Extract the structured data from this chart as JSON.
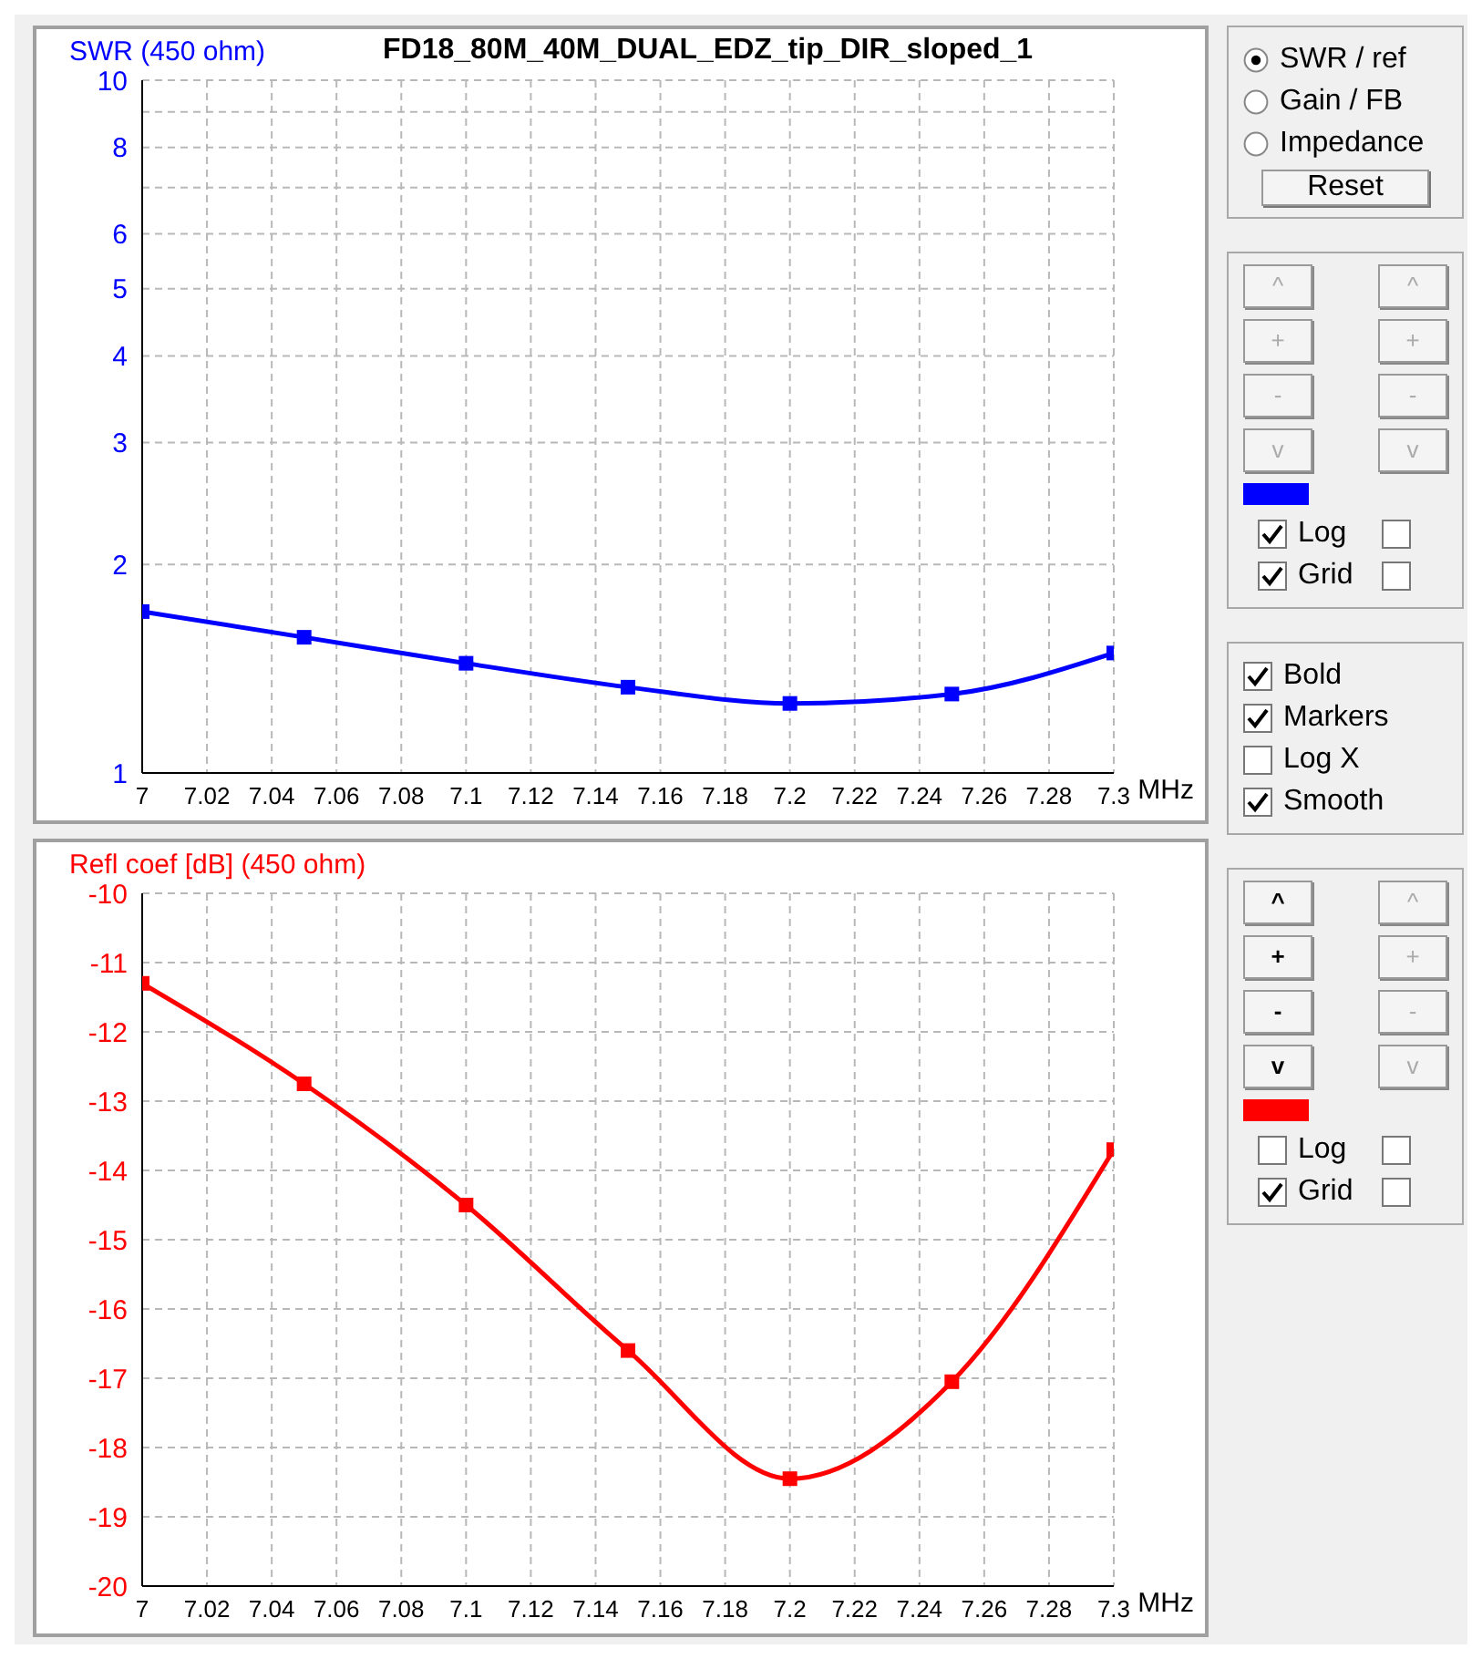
{
  "chart_data": [
    {
      "type": "line",
      "title": "FD18_80M_40M_DUAL_EDZ_tip_DIR_sloped_1",
      "ylabel": "SWR (450 ohm)",
      "xlabel": "MHz",
      "x": [
        7.0,
        7.05,
        7.1,
        7.15,
        7.2,
        7.25,
        7.3
      ],
      "series": [
        {
          "color": "#0000ff",
          "values": [
            1.71,
            1.57,
            1.44,
            1.33,
            1.26,
            1.3,
            1.49
          ]
        }
      ],
      "xlim": [
        7.0,
        7.3
      ],
      "xticks": [
        7,
        7.02,
        7.04,
        7.06,
        7.08,
        7.1,
        7.12,
        7.14,
        7.16,
        7.18,
        7.2,
        7.22,
        7.24,
        7.26,
        7.28,
        7.3
      ],
      "ylim": [
        1,
        10
      ],
      "yticks": [
        1,
        2,
        3,
        4,
        5,
        6,
        {
          "value": 7,
          "label": null
        },
        8,
        {
          "value": 9,
          "label": null
        },
        10
      ],
      "log": "y",
      "grid": true,
      "marker": "square",
      "line_style": "solid"
    },
    {
      "type": "line",
      "ylabel": "Refl coef [dB] (450 ohm)",
      "xlabel": "MHz",
      "x": [
        7.0,
        7.05,
        7.1,
        7.15,
        7.2,
        7.25,
        7.3
      ],
      "series": [
        {
          "color": "#ff0000",
          "values": [
            -11.3,
            -12.75,
            -14.5,
            -16.6,
            -18.45,
            -17.05,
            -13.7
          ]
        }
      ],
      "xlim": [
        7.0,
        7.3
      ],
      "xticks": [
        7,
        7.02,
        7.04,
        7.06,
        7.08,
        7.1,
        7.12,
        7.14,
        7.16,
        7.18,
        7.2,
        7.22,
        7.24,
        7.26,
        7.28,
        7.3
      ],
      "ylim": [
        -20,
        -10
      ],
      "yticks": [
        -20,
        -19,
        -18,
        -17,
        -16,
        -15,
        -14,
        -13,
        -12,
        -11,
        -10
      ],
      "grid": true,
      "marker": "square",
      "line_style": "solid"
    },
    {
      "type": "other",
      "annotations": [
        "SWR / ref",
        "Gain / FB",
        "Impedance",
        "Reset",
        "^",
        "+",
        "-",
        "v",
        "^",
        "+",
        "-",
        "v",
        "Log",
        "Grid",
        "Bold",
        "Markers",
        "Log X",
        "Smooth",
        "^",
        "+",
        "-",
        "v",
        "^",
        "+",
        "-",
        "v",
        "Log",
        "Grid"
      ]
    }
  ]
}
